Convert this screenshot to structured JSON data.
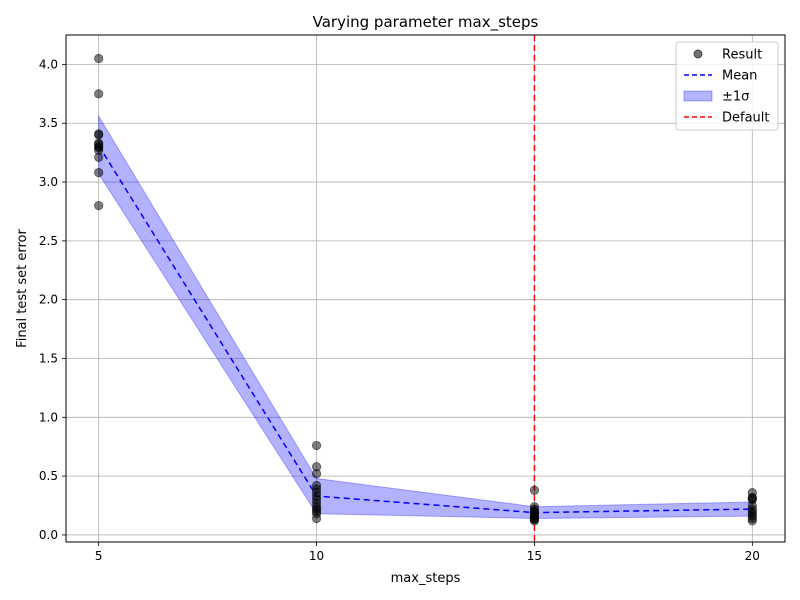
{
  "chart_data": {
    "type": "scatter",
    "title": "Varying parameter max_steps",
    "xlabel": "max_steps",
    "ylabel": "Final test set error",
    "xlim": [
      4.25,
      20.75
    ],
    "ylim": [
      -0.06,
      4.25
    ],
    "x_ticks": [
      5,
      10,
      15,
      20
    ],
    "y_ticks": [
      0.0,
      0.5,
      1.0,
      1.5,
      2.0,
      2.5,
      3.0,
      3.5,
      4.0
    ],
    "y_tick_labels": [
      "0.0",
      "0.5",
      "1.0",
      "1.5",
      "2.0",
      "2.5",
      "3.0",
      "3.5",
      "4.0"
    ],
    "grid": true,
    "legend_position": "top-right",
    "legend": [
      "Result",
      "Mean",
      "±1σ",
      "Default"
    ],
    "colors": {
      "result": "#555555",
      "mean": "#0000ff",
      "band": "#0000ff",
      "default": "#ff0000",
      "grid": "#b0b0b0"
    },
    "series": [
      {
        "name": "Result",
        "points": [
          [
            5,
            4.05
          ],
          [
            5,
            3.75
          ],
          [
            5,
            3.41
          ],
          [
            5,
            3.4
          ],
          [
            5,
            3.33
          ],
          [
            5,
            3.32
          ],
          [
            5,
            3.3
          ],
          [
            5,
            3.29
          ],
          [
            5,
            3.27
          ],
          [
            5,
            3.21
          ],
          [
            5,
            3.08
          ],
          [
            5,
            2.8
          ],
          [
            10,
            0.76
          ],
          [
            10,
            0.58
          ],
          [
            10,
            0.52
          ],
          [
            10,
            0.42
          ],
          [
            10,
            0.39
          ],
          [
            10,
            0.36
          ],
          [
            10,
            0.33
          ],
          [
            10,
            0.3
          ],
          [
            10,
            0.27
          ],
          [
            10,
            0.24
          ],
          [
            10,
            0.22
          ],
          [
            10,
            0.2
          ],
          [
            10,
            0.18
          ],
          [
            10,
            0.14
          ],
          [
            15,
            0.38
          ],
          [
            15,
            0.24
          ],
          [
            15,
            0.22
          ],
          [
            15,
            0.2
          ],
          [
            15,
            0.19
          ],
          [
            15,
            0.18
          ],
          [
            15,
            0.17
          ],
          [
            15,
            0.16
          ],
          [
            15,
            0.15
          ],
          [
            15,
            0.14
          ],
          [
            15,
            0.13
          ],
          [
            15,
            0.12
          ],
          [
            20,
            0.36
          ],
          [
            20,
            0.32
          ],
          [
            20,
            0.31
          ],
          [
            20,
            0.3
          ],
          [
            20,
            0.25
          ],
          [
            20,
            0.22
          ],
          [
            20,
            0.2
          ],
          [
            20,
            0.18
          ],
          [
            20,
            0.16
          ],
          [
            20,
            0.14
          ],
          [
            20,
            0.12
          ]
        ]
      },
      {
        "name": "Mean",
        "x": [
          5,
          10,
          15,
          20
        ],
        "values": [
          3.31,
          0.33,
          0.19,
          0.22
        ]
      },
      {
        "name": "±1σ",
        "x": [
          5,
          10,
          15,
          20
        ],
        "lower": [
          3.07,
          0.18,
          0.14,
          0.16
        ],
        "upper": [
          3.56,
          0.48,
          0.24,
          0.28
        ]
      },
      {
        "name": "Default",
        "x_value": 15
      }
    ]
  }
}
